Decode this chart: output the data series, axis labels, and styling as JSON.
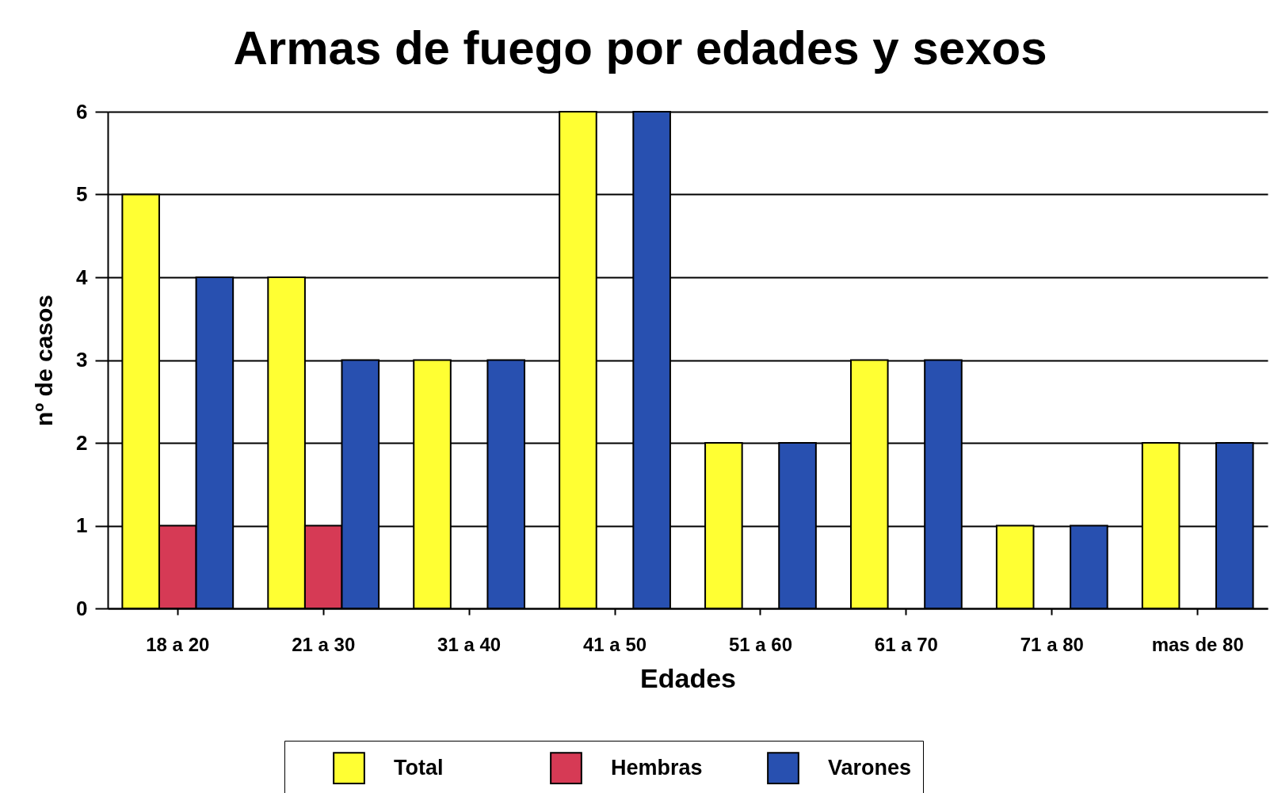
{
  "chart_data": {
    "type": "bar",
    "title": "Armas de fuego por edades y sexos",
    "xlabel": "Edades",
    "ylabel": "nº de casos",
    "categories": [
      "18 a 20",
      "21 a 30",
      "31 a 40",
      "41 a 50",
      "51 a 60",
      "61 a 70",
      "71 a 80",
      "mas de 80"
    ],
    "series": [
      {
        "name": "Total",
        "color": "#ffff33",
        "values": [
          5,
          4,
          3,
          6,
          2,
          3,
          1,
          2
        ]
      },
      {
        "name": "Hembras",
        "color": "#d63a55",
        "values": [
          1,
          1,
          0,
          0,
          0,
          0,
          0,
          0
        ]
      },
      {
        "name": "Varones",
        "color": "#2850b0",
        "values": [
          4,
          3,
          3,
          6,
          2,
          3,
          1,
          2
        ]
      }
    ],
    "ylim": [
      0,
      6
    ],
    "yticks": [
      0,
      1,
      2,
      3,
      4,
      5,
      6
    ],
    "grid": "y",
    "legend": "bottom"
  }
}
